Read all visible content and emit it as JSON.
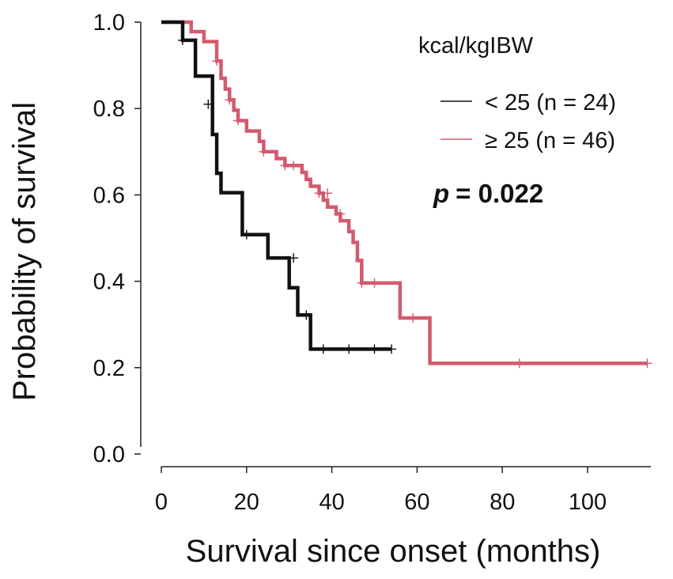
{
  "chart_data": {
    "type": "line",
    "subtype": "kaplan-meier-step",
    "xlabel": "Survival since onset (months)",
    "ylabel": "Probability of survival",
    "xlim": [
      -5,
      120
    ],
    "ylim": [
      0,
      1.0
    ],
    "x_ticks": [
      0,
      20,
      40,
      60,
      80,
      100
    ],
    "x_tick_labels": [
      "0",
      "20",
      "40",
      "60",
      "80",
      "100"
    ],
    "y_ticks": [
      0.0,
      0.2,
      0.4,
      0.6,
      0.8,
      1.0
    ],
    "y_tick_labels": [
      "0.0",
      "0.2",
      "0.4",
      "0.6",
      "0.8",
      "1.0"
    ],
    "legend": {
      "title": "kcal/kgIBW",
      "position": "top-right",
      "entries": [
        "< 25 (n = 24)",
        "≥ 25 (n = 46)"
      ]
    },
    "annotation": {
      "p_label": "p",
      "p_value": "= 0.022"
    },
    "series": [
      {
        "name": "< 25 (n = 24)",
        "color": "#111111",
        "x": [
          0,
          5,
          8,
          12,
          13,
          14,
          19,
          25,
          30,
          31,
          32,
          33,
          35,
          54
        ],
        "y": [
          1.0,
          0.958,
          0.875,
          0.74,
          0.65,
          0.605,
          0.508,
          0.454,
          0.385,
          0.385,
          0.322,
          0.322,
          0.243,
          0.243
        ],
        "censored_x": [
          5,
          11,
          20,
          31,
          34,
          38,
          44,
          50,
          54
        ],
        "censored_y": [
          0.958,
          0.81,
          0.508,
          0.454,
          0.322,
          0.243,
          0.243,
          0.243,
          0.243
        ]
      },
      {
        "name": "≥ 25 (n = 46)",
        "color": "#d35a6e",
        "x": [
          0,
          7,
          10,
          13,
          14,
          15,
          16,
          17,
          18,
          20,
          23,
          24,
          27,
          29,
          33,
          34,
          35,
          37,
          38,
          39,
          41,
          42,
          44,
          45,
          46,
          47,
          56,
          58,
          63,
          114
        ],
        "y": [
          1.0,
          0.978,
          0.955,
          0.91,
          0.87,
          0.845,
          0.82,
          0.796,
          0.772,
          0.748,
          0.724,
          0.7,
          0.684,
          0.668,
          0.652,
          0.636,
          0.62,
          0.604,
          0.588,
          0.572,
          0.556,
          0.54,
          0.515,
          0.49,
          0.448,
          0.396,
          0.315,
          0.315,
          0.21,
          0.21
        ],
        "censored_x": [
          13,
          16,
          18,
          24,
          29,
          31,
          37,
          39,
          42,
          47,
          50,
          59,
          84,
          114
        ],
        "censored_y": [
          0.91,
          0.82,
          0.772,
          0.7,
          0.668,
          0.668,
          0.604,
          0.604,
          0.556,
          0.396,
          0.396,
          0.315,
          0.21,
          0.21
        ]
      }
    ]
  }
}
